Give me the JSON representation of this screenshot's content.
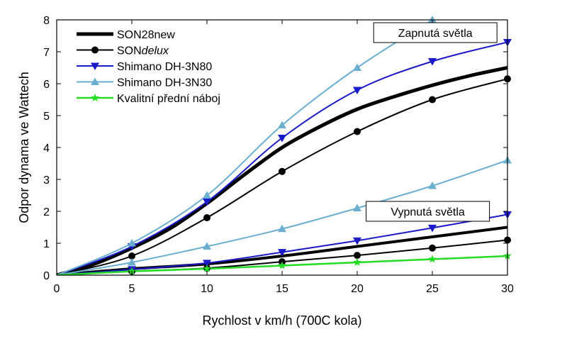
{
  "chart_data": {
    "type": "line",
    "title": "",
    "xlabel": "Rychlost v km/h (700C kola)",
    "ylabel": "Odpor dynama ve Wattech",
    "xlim": [
      0,
      30
    ],
    "ylim": [
      0,
      8
    ],
    "x_ticks": [
      0,
      5,
      10,
      15,
      20,
      25,
      30
    ],
    "y_ticks": [
      0,
      1,
      2,
      3,
      4,
      5,
      6,
      7,
      8
    ],
    "grid": false,
    "legend": {
      "placement": "top-left",
      "entries": [
        {
          "series": "son28",
          "prefix": "SON28new",
          "italic": ""
        },
        {
          "series": "sondelux",
          "prefix": "SON",
          "italic": "delux"
        },
        {
          "series": "dh3n80",
          "prefix": "Shimano DH-3N80",
          "italic": ""
        },
        {
          "series": "dh3n30",
          "prefix": "Shimano DH-3N30",
          "italic": ""
        },
        {
          "series": "hub",
          "prefix": "Kvalitní přední náboj",
          "italic": ""
        }
      ]
    },
    "annotations": [
      {
        "text": "Zapnutá světla",
        "anchor_x": 28.5,
        "anchor_y": 7.6
      },
      {
        "text": "Vypnutá světla",
        "anchor_x": 28.0,
        "anchor_y": 2.0
      }
    ],
    "series": [
      {
        "id": "son28",
        "name": "SON28new",
        "state": "on",
        "color": "#000000",
        "width": 5,
        "marker": "none",
        "x": [
          0,
          2.5,
          5,
          7.5,
          10,
          12.5,
          15,
          17.5,
          20,
          22.5,
          25,
          27.5,
          30
        ],
        "y": [
          0,
          0.35,
          0.85,
          1.45,
          2.25,
          3.15,
          4.0,
          4.65,
          5.2,
          5.6,
          5.95,
          6.25,
          6.5
        ]
      },
      {
        "id": "son28",
        "name": "SON28new",
        "state": "off",
        "color": "#000000",
        "width": 4,
        "marker": "none",
        "x": [
          0,
          5,
          10,
          15,
          20,
          25,
          30
        ],
        "y": [
          0,
          0.2,
          0.35,
          0.6,
          0.9,
          1.2,
          1.5
        ]
      },
      {
        "id": "sondelux",
        "name": "SONdelux",
        "state": "on",
        "color": "#000000",
        "width": 2,
        "marker": "circle",
        "x": [
          0,
          5,
          10,
          15,
          20,
          25,
          30
        ],
        "y": [
          0,
          0.6,
          1.8,
          3.25,
          4.5,
          5.5,
          6.15
        ]
      },
      {
        "id": "sondelux",
        "name": "SONdelux",
        "state": "off",
        "color": "#000000",
        "width": 2,
        "marker": "circle",
        "x": [
          0,
          5,
          10,
          15,
          20,
          25,
          30
        ],
        "y": [
          0,
          0.12,
          0.22,
          0.42,
          0.62,
          0.85,
          1.1
        ]
      },
      {
        "id": "dh3n80",
        "name": "Shimano DH-3N80",
        "state": "on",
        "color": "#1a1ac8",
        "width": 2,
        "marker": "triangle-down",
        "x": [
          0,
          5,
          10,
          15,
          20,
          25,
          30
        ],
        "y": [
          0,
          0.9,
          2.3,
          4.3,
          5.8,
          6.7,
          7.3
        ]
      },
      {
        "id": "dh3n80",
        "name": "Shimano DH-3N80",
        "state": "off",
        "color": "#1a1ac8",
        "width": 2,
        "marker": "triangle-down",
        "x": [
          0,
          5,
          10,
          15,
          20,
          25,
          30
        ],
        "y": [
          0,
          0.18,
          0.38,
          0.72,
          1.08,
          1.48,
          1.9
        ]
      },
      {
        "id": "dh3n30",
        "name": "Shimano DH-3N30",
        "state": "on",
        "color": "#6aaed0",
        "width": 2,
        "marker": "triangle-up",
        "x": [
          0,
          5,
          10,
          15,
          20,
          25
        ],
        "y": [
          0,
          1.0,
          2.5,
          4.7,
          6.5,
          8.0
        ]
      },
      {
        "id": "dh3n30",
        "name": "Shimano DH-3N30",
        "state": "off",
        "color": "#6aaed0",
        "width": 2,
        "marker": "triangle-up",
        "x": [
          0,
          5,
          10,
          15,
          20,
          25,
          30
        ],
        "y": [
          0,
          0.4,
          0.9,
          1.45,
          2.1,
          2.8,
          3.6
        ]
      },
      {
        "id": "hub",
        "name": "Kvalitní přední náboj",
        "state": "",
        "color": "#22dd22",
        "width": 2.5,
        "marker": "star",
        "x": [
          0,
          5,
          10,
          15,
          20,
          25,
          30
        ],
        "y": [
          0,
          0.12,
          0.2,
          0.3,
          0.4,
          0.5,
          0.6
        ]
      }
    ]
  }
}
